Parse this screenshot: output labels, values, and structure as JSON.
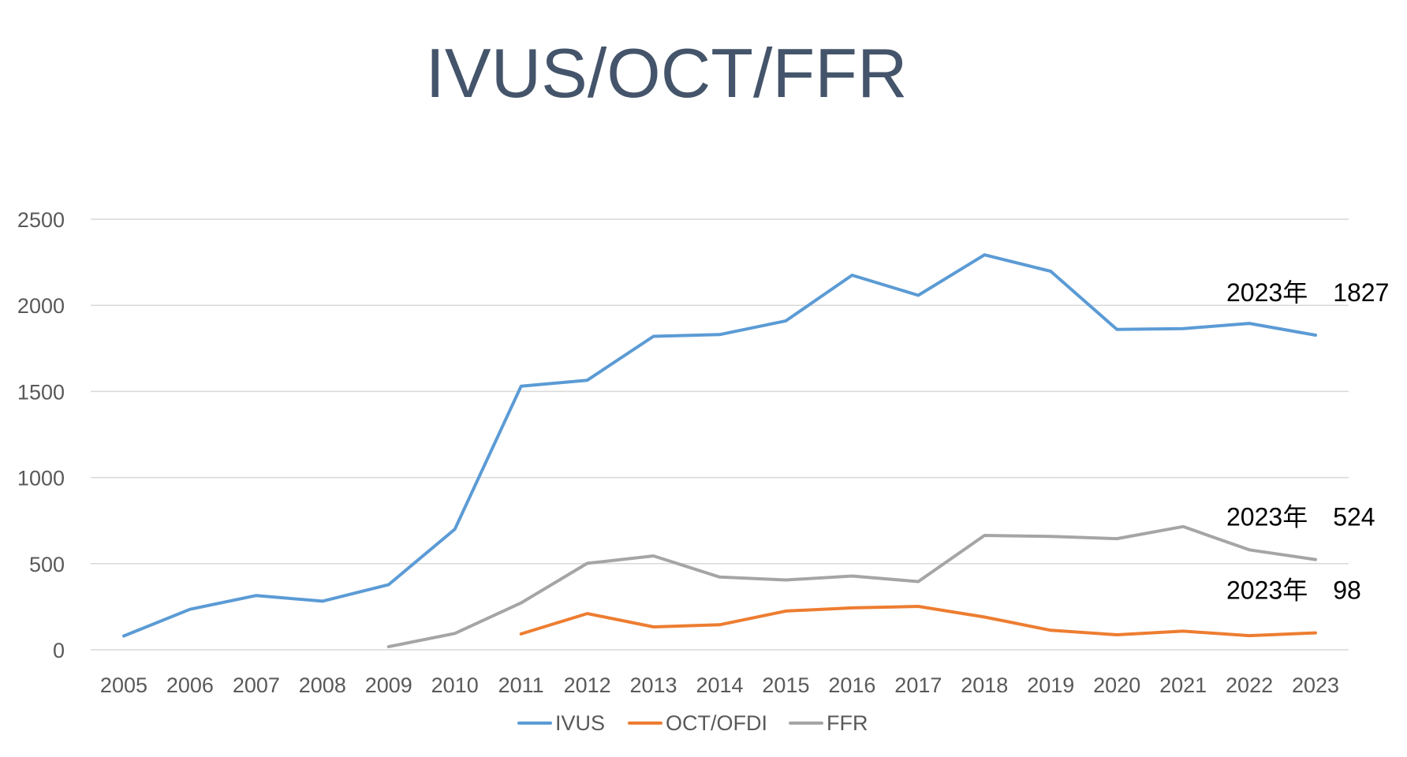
{
  "chart_data": {
    "type": "line",
    "title": "IVUS/OCT/FFR",
    "xlabel": "",
    "ylabel": "",
    "ylim": [
      0,
      2500
    ],
    "yticks": [
      0,
      500,
      1000,
      1500,
      2000,
      2500
    ],
    "grid": true,
    "legend_position": "bottom",
    "categories": [
      "2005",
      "2006",
      "2007",
      "2008",
      "2009",
      "2010",
      "2011",
      "2012",
      "2013",
      "2014",
      "2015",
      "2016",
      "2017",
      "2018",
      "2019",
      "2020",
      "2021",
      "2022",
      "2023"
    ],
    "series": [
      {
        "name": "IVUS",
        "color": "#5b9bd5",
        "values": [
          80,
          235,
          315,
          282,
          378,
          700,
          1530,
          1565,
          1820,
          1830,
          1910,
          2175,
          2058,
          2293,
          2198,
          1860,
          1865,
          1895,
          1827
        ]
      },
      {
        "name": "OCT/OFDI",
        "color": "#ed7d31",
        "values": [
          null,
          null,
          null,
          null,
          null,
          null,
          92,
          210,
          133,
          145,
          225,
          243,
          252,
          190,
          113,
          87,
          108,
          82,
          98
        ]
      },
      {
        "name": "FFR",
        "color": "#a5a5a5",
        "values": [
          null,
          null,
          null,
          null,
          18,
          95,
          272,
          502,
          545,
          422,
          405,
          428,
          396,
          664,
          658,
          645,
          715,
          580,
          524
        ]
      }
    ],
    "annotations": [
      {
        "series": "IVUS",
        "text": "2023年　1827"
      },
      {
        "series": "FFR",
        "text": "2023年　524"
      },
      {
        "series": "OCT/OFDI",
        "text": "2023年　98"
      }
    ]
  }
}
